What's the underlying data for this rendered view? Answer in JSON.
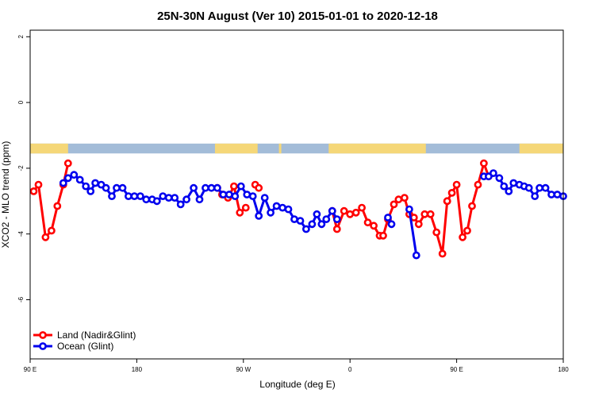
{
  "chart_data": {
    "type": "line",
    "title": "25N-30N August (Ver 10)   2015-01-01 to 2020-12-18",
    "xlabel": "Longitude (deg E)",
    "ylabel": "XCO2 - MLO trend (ppm)",
    "xlim": [
      90,
      450
    ],
    "ylim": [
      -7.8,
      2.2
    ],
    "x_ticks": [
      {
        "value": 90,
        "label": "90 E"
      },
      {
        "value": 180,
        "label": "180"
      },
      {
        "value": 270,
        "label": "90 W"
      },
      {
        "value": 360,
        "label": "0"
      },
      {
        "value": 450,
        "label": "90 E"
      },
      {
        "value": 540,
        "label": "180"
      }
    ],
    "y_ticks": [
      {
        "value": 2,
        "label": "2"
      },
      {
        "value": 0,
        "label": "0"
      },
      {
        "value": -2,
        "label": "-2"
      },
      {
        "value": -4,
        "label": "-4"
      },
      {
        "value": -6,
        "label": "-6"
      }
    ],
    "xlim_full": [
      90,
      540
    ],
    "grid": false,
    "legend_position": "bottom-left",
    "land_ocean_strip": {
      "y_range": [
        -1.55,
        -1.25
      ],
      "ocean_color": "#a3bcd8",
      "land_color": "#f5d778",
      "land_segments": [
        [
          90,
          122
        ],
        [
          246,
          282
        ],
        [
          300,
          302
        ],
        [
          342,
          424
        ],
        [
          503,
          540
        ]
      ]
    },
    "series": [
      {
        "name": "Land (Nadir&Glint)",
        "color": "#ff0000",
        "segments": [
          {
            "x": [
              93,
              97,
              103,
              108,
              113,
              118,
              122
            ],
            "y": [
              -2.7,
              -2.5,
              -4.1,
              -3.9,
              -3.15,
              -2.5,
              -1.85
            ]
          },
          {
            "x": [
              248,
              252,
              257,
              262,
              267,
              272
            ],
            "y": [
              -2.6,
              -2.8,
              -2.9,
              -2.55,
              -3.35,
              -3.2
            ]
          },
          {
            "x": [
              280,
              283
            ],
            "y": [
              -2.5,
              -2.6
            ]
          },
          {
            "x": [
              345,
              349,
              355,
              360,
              365,
              370,
              375,
              380,
              385,
              388,
              392,
              397,
              401,
              406,
              410,
              414,
              418,
              423,
              428,
              433,
              438,
              442
            ],
            "y": [
              -3.3,
              -3.85,
              -3.3,
              -3.4,
              -3.35,
              -3.2,
              -3.65,
              -3.75,
              -4.05,
              -4.05,
              -3.55,
              -3.1,
              -2.95,
              -2.9,
              -3.4,
              -3.5,
              -3.7,
              -3.4,
              -3.4,
              -3.95,
              -4.6,
              -3.0
            ]
          },
          {
            "x": [
              442,
              446,
              450,
              455,
              459,
              463,
              468,
              473,
              477
            ],
            "y": [
              -3.0,
              -2.75,
              -2.5,
              -4.1,
              -3.9,
              -3.15,
              -2.5,
              -1.85,
              -2.25
            ]
          }
        ]
      },
      {
        "name": "Ocean (Glint)",
        "color": "#0000ee",
        "segments": [
          {
            "x": [
              118,
              122,
              127,
              132,
              137,
              141,
              145,
              150,
              154,
              159,
              163,
              168,
              173,
              178,
              183,
              188,
              193,
              197,
              202,
              207,
              212,
              217,
              222,
              228,
              233,
              238,
              243,
              248,
              253,
              258,
              263,
              268,
              273,
              278,
              283,
              288,
              293,
              298,
              303,
              308,
              313,
              318,
              323,
              328,
              332,
              336,
              340,
              345,
              349
            ],
            "y": [
              -2.45,
              -2.3,
              -2.2,
              -2.35,
              -2.55,
              -2.7,
              -2.45,
              -2.5,
              -2.6,
              -2.85,
              -2.6,
              -2.6,
              -2.85,
              -2.85,
              -2.85,
              -2.95,
              -2.95,
              -3.0,
              -2.85,
              -2.9,
              -2.9,
              -3.1,
              -2.95,
              -2.6,
              -2.95,
              -2.6,
              -2.6,
              -2.6,
              -2.8,
              -2.8,
              -2.85,
              -2.55,
              -2.8,
              -2.85,
              -3.45,
              -2.9,
              -3.35,
              -3.15,
              -3.2,
              -3.25,
              -3.55,
              -3.6,
              -3.85,
              -3.7,
              -3.4,
              -3.7,
              -3.55,
              -3.3,
              -3.55
            ]
          },
          {
            "x": [
              392,
              395
            ],
            "y": [
              -3.5,
              -3.7
            ]
          },
          {
            "x": [
              410,
              416
            ],
            "y": [
              -3.25,
              -4.65
            ]
          },
          {
            "x": [
              473,
              477,
              481,
              486,
              490,
              494,
              498,
              503,
              507,
              511,
              516,
              520,
              525,
              530,
              535,
              540
            ],
            "y": [
              -2.25,
              -2.25,
              -2.15,
              -2.3,
              -2.55,
              -2.7,
              -2.45,
              -2.5,
              -2.55,
              -2.6,
              -2.85,
              -2.6,
              -2.6,
              -2.8,
              -2.8,
              -2.85
            ]
          }
        ]
      }
    ]
  }
}
